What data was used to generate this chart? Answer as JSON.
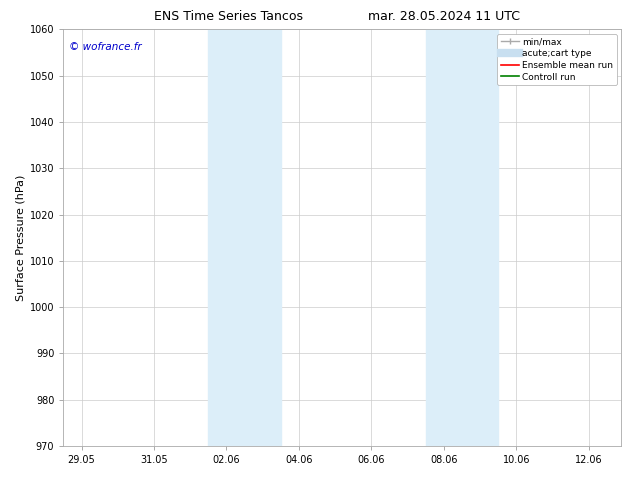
{
  "title_left": "ENS Time Series Tancos",
  "title_right": "mar. 28.05.2024 11 UTC",
  "ylabel": "Surface Pressure (hPa)",
  "ylim": [
    970,
    1060
  ],
  "yticks": [
    970,
    980,
    990,
    1000,
    1010,
    1020,
    1030,
    1040,
    1050,
    1060
  ],
  "xtick_labels": [
    "29.05",
    "31.05",
    "02.06",
    "04.06",
    "06.06",
    "08.06",
    "10.06",
    "12.06"
  ],
  "xtick_positions": [
    0,
    2,
    4,
    6,
    8,
    10,
    12,
    14
  ],
  "xlim": [
    -0.5,
    14.9
  ],
  "shaded_blocks": [
    {
      "xmin": 3.5,
      "xmax": 5.5
    },
    {
      "xmin": 9.5,
      "xmax": 11.5
    }
  ],
  "shaded_color": "#dceef9",
  "watermark": "© wofrance.fr",
  "watermark_color": "#0000cc",
  "bg_color": "#ffffff",
  "grid_color": "#cccccc",
  "title_fontsize": 9,
  "tick_fontsize": 7,
  "ylabel_fontsize": 8,
  "legend_fontsize": 6.5
}
